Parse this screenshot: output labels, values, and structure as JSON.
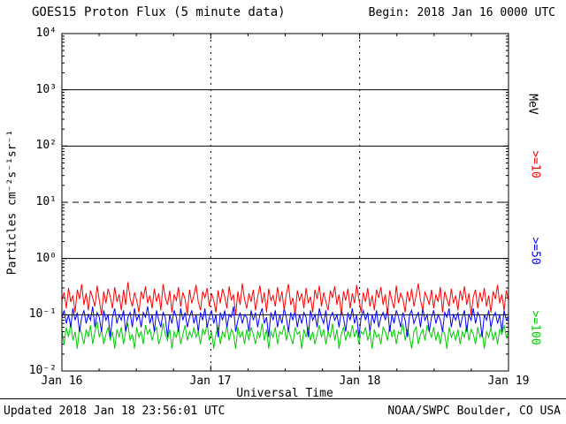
{
  "header": {
    "title": "GOES15 Proton Flux (5 minute data)",
    "begin": "Begin: 2018 Jan 16 0000 UTC"
  },
  "footer": {
    "updated": "Updated 2018 Jan 18 23:56:01 UTC",
    "credit": "NOAA/SWPC Boulder, CO USA"
  },
  "axes": {
    "x_label": "Universal Time",
    "y_label": "Particles cm⁻²s⁻¹sr⁻¹",
    "right_unit_label": "MeV",
    "y_ticks": [
      "10⁴",
      "10³",
      "10²",
      "10¹",
      "10⁰",
      "10⁻¹",
      "10⁻²"
    ],
    "x_ticks": [
      "Jan 16",
      "Jan 17",
      "Jan 18",
      "Jan 19"
    ]
  },
  "chart_data": {
    "type": "line",
    "title": "GOES15 Proton Flux (5 minute data)",
    "xlabel": "Universal Time",
    "ylabel": "Particles cm⁻²s⁻¹sr⁻¹",
    "x_range": [
      "2018 Jan 16 0000 UTC",
      "2018 Jan 19 0000 UTC"
    ],
    "days_span": 3,
    "y_scale": "log",
    "ylim": [
      0.01,
      10000
    ],
    "grid": true,
    "legend_position": "right",
    "y_gridlines": [
      {
        "value": 1000,
        "style": "solid"
      },
      {
        "value": 100,
        "style": "solid"
      },
      {
        "value": 10,
        "style": "dashed"
      },
      {
        "value": 1,
        "style": "solid"
      },
      {
        "value": 0.1,
        "style": "solid"
      }
    ],
    "x_gridlines_days": [
      1,
      2
    ],
    "series": [
      {
        "name": "Protons >=10 MeV",
        "label": ">=10",
        "color": "#ff0000",
        "values": [
          0.18,
          0.25,
          0.13,
          0.3,
          0.17,
          0.22,
          0.11,
          0.28,
          0.19,
          0.35,
          0.15,
          0.24,
          0.12,
          0.27,
          0.2,
          0.14,
          0.33,
          0.18,
          0.1,
          0.26,
          0.16,
          0.29,
          0.21,
          0.13,
          0.31,
          0.17,
          0.23,
          0.12,
          0.28,
          0.15,
          0.38,
          0.2,
          0.14,
          0.25,
          0.18,
          0.11,
          0.26,
          0.19,
          0.32,
          0.16,
          0.22,
          0.13,
          0.29,
          0.17,
          0.24,
          0.12,
          0.35,
          0.2,
          0.15,
          0.27,
          0.11,
          0.23,
          0.18,
          0.31,
          0.14,
          0.25,
          0.19,
          0.1,
          0.28,
          0.16,
          0.22,
          0.34,
          0.17,
          0.12,
          0.26,
          0.2,
          0.3,
          0.14,
          0.24,
          0.18,
          0.11,
          0.27,
          0.16,
          0.29,
          0.21,
          0.13,
          0.32,
          0.18,
          0.23,
          0.1,
          0.26,
          0.15,
          0.36,
          0.19,
          0.13,
          0.24,
          0.17,
          0.28,
          0.12,
          0.21,
          0.33,
          0.16,
          0.25,
          0.11,
          0.29,
          0.18,
          0.22,
          0.14,
          0.31,
          0.17,
          0.26,
          0.12,
          0.23,
          0.35,
          0.15,
          0.2,
          0.1,
          0.27,
          0.18,
          0.24,
          0.13,
          0.3,
          0.16,
          0.21,
          0.11,
          0.28,
          0.19,
          0.33,
          0.14,
          0.25,
          0.17,
          0.12,
          0.27,
          0.2,
          0.32,
          0.15,
          0.23,
          0.1,
          0.26,
          0.18,
          0.29,
          0.13,
          0.24,
          0.16,
          0.34,
          0.19,
          0.11,
          0.25,
          0.17,
          0.3,
          0.14,
          0.22,
          0.12,
          0.28,
          0.2,
          0.31,
          0.15,
          0.23,
          0.1,
          0.27,
          0.18,
          0.13,
          0.33,
          0.16,
          0.24,
          0.19,
          0.11,
          0.26,
          0.17,
          0.29,
          0.14,
          0.22,
          0.36,
          0.18,
          0.12,
          0.25,
          0.2,
          0.15,
          0.28,
          0.13,
          0.23,
          0.17,
          0.31,
          0.11,
          0.26,
          0.19,
          0.14,
          0.29,
          0.16,
          0.22,
          0.12,
          0.27,
          0.18,
          0.32,
          0.15,
          0.24,
          0.1,
          0.21,
          0.28,
          0.13,
          0.25,
          0.17,
          0.3,
          0.14,
          0.22,
          0.11,
          0.26,
          0.19,
          0.34,
          0.16,
          0.23,
          0.12,
          0.27,
          0.18
        ]
      },
      {
        "name": "Protons >=50 MeV",
        "label": ">=50",
        "color": "#0000ff",
        "values": [
          0.09,
          0.12,
          0.07,
          0.1,
          0.06,
          0.13,
          0.08,
          0.11,
          0.05,
          0.09,
          0.12,
          0.07,
          0.1,
          0.08,
          0.14,
          0.06,
          0.11,
          0.09,
          0.05,
          0.12,
          0.08,
          0.1,
          0.04,
          0.09,
          0.13,
          0.07,
          0.1,
          0.08,
          0.12,
          0.05,
          0.09,
          0.11,
          0.06,
          0.13,
          0.08,
          0.1,
          0.06,
          0.11,
          0.09,
          0.14,
          0.07,
          0.1,
          0.05,
          0.12,
          0.08,
          0.06,
          0.11,
          0.09,
          0.04,
          0.1,
          0.07,
          0.12,
          0.09,
          0.05,
          0.13,
          0.08,
          0.11,
          0.06,
          0.09,
          0.12,
          0.07,
          0.1,
          0.05,
          0.11,
          0.08,
          0.13,
          0.06,
          0.09,
          0.12,
          0.07,
          0.1,
          0.04,
          0.11,
          0.08,
          0.12,
          0.06,
          0.1,
          0.09,
          0.14,
          0.05,
          0.08,
          0.11,
          0.07,
          0.1,
          0.09,
          0.05,
          0.12,
          0.08,
          0.11,
          0.06,
          0.1,
          0.13,
          0.07,
          0.09,
          0.04,
          0.11,
          0.08,
          0.12,
          0.06,
          0.1,
          0.07,
          0.13,
          0.09,
          0.05,
          0.11,
          0.08,
          0.12,
          0.06,
          0.1,
          0.07,
          0.11,
          0.09,
          0.04,
          0.12,
          0.08,
          0.1,
          0.06,
          0.13,
          0.09,
          0.07,
          0.12,
          0.05,
          0.09,
          0.11,
          0.08,
          0.1,
          0.06,
          0.12,
          0.09,
          0.05,
          0.11,
          0.08,
          0.13,
          0.07,
          0.1,
          0.04,
          0.09,
          0.12,
          0.08,
          0.11,
          0.05,
          0.1,
          0.07,
          0.12,
          0.06,
          0.09,
          0.11,
          0.08,
          0.13,
          0.05,
          0.1,
          0.07,
          0.12,
          0.09,
          0.06,
          0.11,
          0.08,
          0.04,
          0.1,
          0.12,
          0.07,
          0.09,
          0.11,
          0.06,
          0.13,
          0.08,
          0.1,
          0.05,
          0.09,
          0.12,
          0.07,
          0.1,
          0.08,
          0.05,
          0.11,
          0.09,
          0.13,
          0.06,
          0.1,
          0.08,
          0.11,
          0.06,
          0.09,
          0.12,
          0.05,
          0.1,
          0.08,
          0.13,
          0.07,
          0.11,
          0.09,
          0.04,
          0.1,
          0.08,
          0.12,
          0.06,
          0.09,
          0.11,
          0.07,
          0.1,
          0.05,
          0.12,
          0.08,
          0.09
        ]
      },
      {
        "name": "Protons >=100 MeV",
        "label": ">=100",
        "color": "#00cc00",
        "values": [
          0.05,
          0.03,
          0.06,
          0.04,
          0.07,
          0.035,
          0.05,
          0.025,
          0.06,
          0.045,
          0.03,
          0.055,
          0.04,
          0.065,
          0.03,
          0.05,
          0.075,
          0.04,
          0.055,
          0.03,
          0.045,
          0.06,
          0.035,
          0.05,
          0.025,
          0.055,
          0.04,
          0.06,
          0.03,
          0.05,
          0.07,
          0.035,
          0.045,
          0.025,
          0.06,
          0.04,
          0.05,
          0.03,
          0.065,
          0.045,
          0.055,
          0.035,
          0.05,
          0.06,
          0.03,
          0.04,
          0.07,
          0.045,
          0.035,
          0.055,
          0.025,
          0.05,
          0.04,
          0.06,
          0.03,
          0.045,
          0.065,
          0.035,
          0.05,
          0.04,
          0.06,
          0.04,
          0.05,
          0.03,
          0.055,
          0.045,
          0.07,
          0.035,
          0.05,
          0.025,
          0.045,
          0.06,
          0.03,
          0.05,
          0.04,
          0.065,
          0.035,
          0.055,
          0.045,
          0.025,
          0.06,
          0.04,
          0.05,
          0.03,
          0.055,
          0.035,
          0.06,
          0.045,
          0.03,
          0.05,
          0.04,
          0.07,
          0.035,
          0.055,
          0.025,
          0.05,
          0.04,
          0.06,
          0.03,
          0.05,
          0.045,
          0.065,
          0.035,
          0.055,
          0.04,
          0.03,
          0.06,
          0.045,
          0.05,
          0.025,
          0.055,
          0.04,
          0.06,
          0.035,
          0.05,
          0.03,
          0.045,
          0.065,
          0.04,
          0.055,
          0.03,
          0.05,
          0.04,
          0.07,
          0.035,
          0.055,
          0.025,
          0.045,
          0.06,
          0.035,
          0.05,
          0.04,
          0.065,
          0.04,
          0.055,
          0.03,
          0.05,
          0.045,
          0.06,
          0.035,
          0.05,
          0.025,
          0.055,
          0.04,
          0.045,
          0.03,
          0.06,
          0.05,
          0.035,
          0.065,
          0.04,
          0.055,
          0.03,
          0.05,
          0.045,
          0.07,
          0.035,
          0.055,
          0.04,
          0.025,
          0.05,
          0.06,
          0.03,
          0.045,
          0.055,
          0.035,
          0.065,
          0.05,
          0.04,
          0.06,
          0.035,
          0.05,
          0.03,
          0.055,
          0.045,
          0.025,
          0.06,
          0.04,
          0.05,
          0.035,
          0.055,
          0.03,
          0.05,
          0.04,
          0.065,
          0.035,
          0.055,
          0.045,
          0.03,
          0.06,
          0.04,
          0.05,
          0.025,
          0.05,
          0.04,
          0.06,
          0.035,
          0.05,
          0.03,
          0.055,
          0.045,
          0.065,
          0.04,
          0.05
        ]
      }
    ]
  }
}
